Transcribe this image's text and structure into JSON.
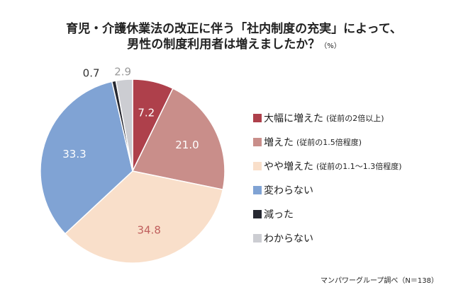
{
  "title_line1": "育児・介護休業法の改正に伴う「社内制度の充実」によって、",
  "title_line2": "男性の制度利用者は増えましたか？",
  "unit": "（%）",
  "source": "マンパワーグループ調べ（N＝138）",
  "chart_data": {
    "type": "pie",
    "title": "育児・介護休業法の改正に伴う「社内制度の充実」によって、男性の制度利用者は増えましたか？",
    "unit": "%",
    "start": "top",
    "direction": "clockwise",
    "legend_position": "right",
    "slices": [
      {
        "label": "大幅に増えた",
        "note": "(従前の2倍以上)",
        "value": 7.2,
        "value_label": "7.2",
        "color": "#ae404b",
        "label_color": "#ffffff",
        "inside": true
      },
      {
        "label": "増えた",
        "note": "(従前の1.5倍程度)",
        "value": 21.0,
        "value_label": "21.0",
        "color": "#c98e8a",
        "label_color": "#ffffff",
        "inside": true
      },
      {
        "label": "やや増えた",
        "note": "(従前の1.1～1.3倍程度)",
        "value": 34.8,
        "value_label": "34.8",
        "color": "#f9dfca",
        "label_color": "#c0605e",
        "inside": true
      },
      {
        "label": "変わらない",
        "note": "",
        "value": 33.3,
        "value_label": "33.3",
        "color": "#80a3d4",
        "label_color": "#ffffff",
        "inside": true
      },
      {
        "label": "減った",
        "note": "",
        "value": 0.7,
        "value_label": "0.7",
        "color": "#262831",
        "label_color": "#333333",
        "inside": false
      },
      {
        "label": "わからない",
        "note": "",
        "value": 2.9,
        "value_label": "2.9",
        "color": "#cccdd2",
        "label_color": "#999999",
        "inside": false
      }
    ]
  }
}
